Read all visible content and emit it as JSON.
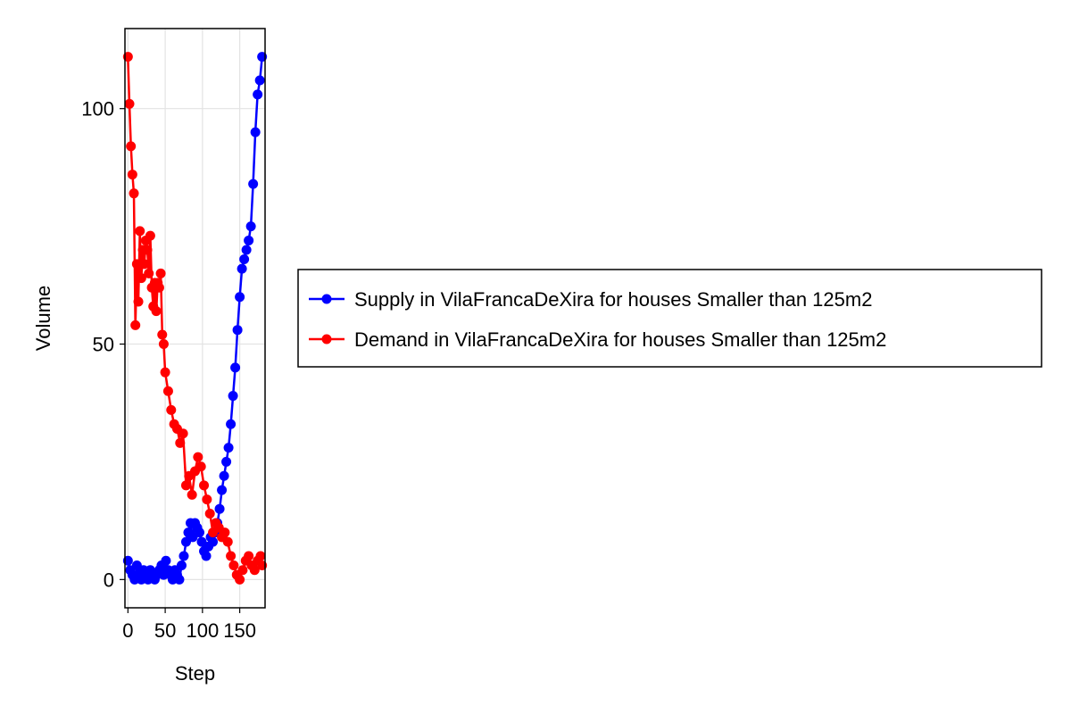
{
  "chart_data": {
    "type": "scatter",
    "xlabel": "Step",
    "ylabel": "Volume",
    "xlim": [
      -4,
      184
    ],
    "ylim": [
      -6,
      117
    ],
    "xticks": [
      0,
      50,
      100,
      150
    ],
    "xtick_labels": [
      "0",
      "50",
      "100",
      "150"
    ],
    "yticks": [
      0,
      50,
      100
    ],
    "ytick_labels": [
      "0",
      "50",
      "100"
    ],
    "grid": true,
    "legend_position": "right",
    "series": [
      {
        "name": "Supply in VilaFrancaDeXira for houses Smaller than 125m2",
        "color": "#0000ff",
        "x": [
          0,
          3,
          6,
          9,
          12,
          15,
          18,
          21,
          24,
          27,
          30,
          33,
          36,
          39,
          42,
          45,
          48,
          51,
          54,
          57,
          60,
          63,
          66,
          69,
          72,
          75,
          78,
          81,
          84,
          87,
          90,
          93,
          96,
          99,
          102,
          105,
          108,
          111,
          114,
          117,
          120,
          123,
          126,
          129,
          132,
          135,
          138,
          141,
          144,
          147,
          150,
          153,
          156,
          159,
          162,
          165,
          168,
          171,
          174,
          177,
          180
        ],
        "y": [
          4,
          2,
          1,
          0,
          3,
          1,
          0,
          2,
          1,
          0,
          2,
          1,
          0,
          1,
          2,
          3,
          1,
          4,
          2,
          1,
          0,
          2,
          1,
          0,
          3,
          5,
          8,
          10,
          12,
          9,
          12,
          11,
          10,
          8,
          6,
          5,
          7,
          9,
          8,
          10,
          12,
          15,
          19,
          22,
          25,
          28,
          33,
          39,
          45,
          53,
          60,
          66,
          68,
          70,
          72,
          75,
          84,
          95,
          103,
          106,
          111
        ]
      },
      {
        "name": "Demand in VilaFrancaDeXira for houses Smaller than 125m2",
        "color": "#ff0000",
        "x": [
          0,
          2,
          4,
          6,
          8,
          10,
          12,
          14,
          16,
          18,
          20,
          22,
          24,
          26,
          28,
          30,
          32,
          34,
          36,
          38,
          40,
          42,
          44,
          46,
          48,
          50,
          54,
          58,
          62,
          66,
          70,
          74,
          78,
          82,
          86,
          90,
          94,
          98,
          102,
          106,
          110,
          114,
          118,
          122,
          126,
          130,
          134,
          138,
          142,
          146,
          150,
          154,
          158,
          162,
          166,
          170,
          174,
          178,
          180
        ],
        "y": [
          111,
          101,
          92,
          86,
          82,
          54,
          67,
          59,
          74,
          64,
          70,
          67,
          72,
          70,
          65,
          73,
          62,
          58,
          63,
          57,
          63,
          62,
          65,
          52,
          50,
          44,
          40,
          36,
          33,
          32,
          29,
          31,
          20,
          22,
          18,
          23,
          26,
          24,
          20,
          17,
          14,
          10,
          12,
          11,
          9,
          10,
          8,
          5,
          3,
          1,
          0,
          2,
          4,
          5,
          3,
          2,
          4,
          5,
          3
        ]
      }
    ]
  }
}
